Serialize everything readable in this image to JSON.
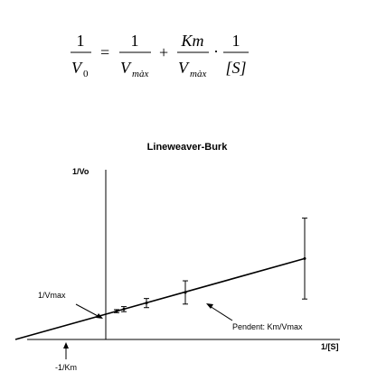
{
  "equation": {
    "lhs_numerator": "1",
    "lhs_denominator_symbol": "V",
    "lhs_denominator_subscript": "0",
    "equals": "=",
    "term1_numerator": "1",
    "term1_denominator_symbol": "V",
    "term1_denominator_subscript": "màx",
    "plus": "+",
    "term2_numerator": "Km",
    "term2_denominator_symbol": "V",
    "term2_denominator_subscript": "màx",
    "dot": "·",
    "term3_numerator": "1",
    "term3_denominator": "[S]"
  },
  "chart_data": {
    "type": "line",
    "title": "Lineweaver-Burk",
    "xlabel": "1/[S]",
    "ylabel": "1/Vo",
    "x_intercept_label": "-1/Km",
    "y_intercept_label": "1/Vmax",
    "slope_label": "Pendent: Km/Vmax",
    "series": [
      {
        "x": [
          -1,
          0,
          0.12,
          0.2,
          0.45,
          0.88,
          2.2
        ],
        "y": [
          0,
          0.5,
          0.56,
          0.6,
          0.72,
          0.93,
          1.6
        ],
        "error": [
          0,
          0,
          0.03,
          0.05,
          0.09,
          0.23,
          0.8
        ]
      }
    ],
    "xlim": [
      -1.3,
      2.3
    ],
    "ylim": [
      0,
      2.6
    ],
    "grid": false,
    "ticks": false,
    "colors": {
      "line": "#000000",
      "text": "#000000"
    }
  }
}
